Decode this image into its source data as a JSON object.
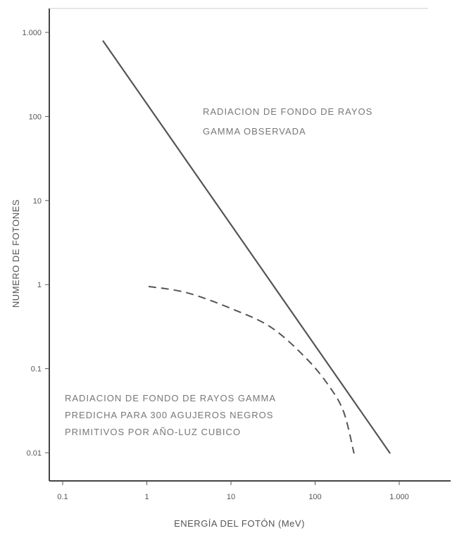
{
  "chart_data": {
    "type": "line",
    "xlabel": "ENERGÍA DEL FOTÓN (MeV)",
    "ylabel": "NUMERO DE FOTONES",
    "x_scale": "log",
    "y_scale": "log",
    "xlim": [
      0.05,
      3000
    ],
    "ylim": [
      0.005,
      2000
    ],
    "x_ticks": [
      {
        "value": 0.1,
        "label": "0.1"
      },
      {
        "value": 1,
        "label": "1"
      },
      {
        "value": 10,
        "label": "10"
      },
      {
        "value": 100,
        "label": "100"
      },
      {
        "value": 1000,
        "label": "1.000"
      }
    ],
    "y_ticks": [
      {
        "value": 1000,
        "label": "1.000"
      },
      {
        "value": 100,
        "label": "100"
      },
      {
        "value": 10,
        "label": "10"
      },
      {
        "value": 1,
        "label": "1"
      },
      {
        "value": 0.1,
        "label": "0.1"
      },
      {
        "value": 0.01,
        "label": "0.01"
      }
    ],
    "grid": false,
    "series": [
      {
        "style": "solid",
        "color": "#555555",
        "points": [
          {
            "x": 0.3,
            "y": 800
          },
          {
            "x": 780,
            "y": 0.0098
          }
        ]
      },
      {
        "style": "dashed",
        "color": "#555555",
        "points": [
          {
            "x": 1.05,
            "y": 0.95
          },
          {
            "x": 3,
            "y": 0.8
          },
          {
            "x": 10,
            "y": 0.52
          },
          {
            "x": 30,
            "y": 0.31
          },
          {
            "x": 80,
            "y": 0.13
          },
          {
            "x": 150,
            "y": 0.06
          },
          {
            "x": 220,
            "y": 0.03
          },
          {
            "x": 290,
            "y": 0.0098
          }
        ]
      }
    ],
    "annotations": [
      {
        "id": "observed",
        "lines": [
          "RADIACION DE FONDO DE RAYOS",
          "GAMMA OBSERVADA"
        ]
      },
      {
        "id": "predicted",
        "lines": [
          "RADIACION DE FONDO DE RAYOS GAMMA",
          "PREDICHA PARA 300 AGUJEROS NEGROS",
          "PRIMITIVOS POR AÑO-LUZ CUBICO"
        ]
      }
    ]
  }
}
